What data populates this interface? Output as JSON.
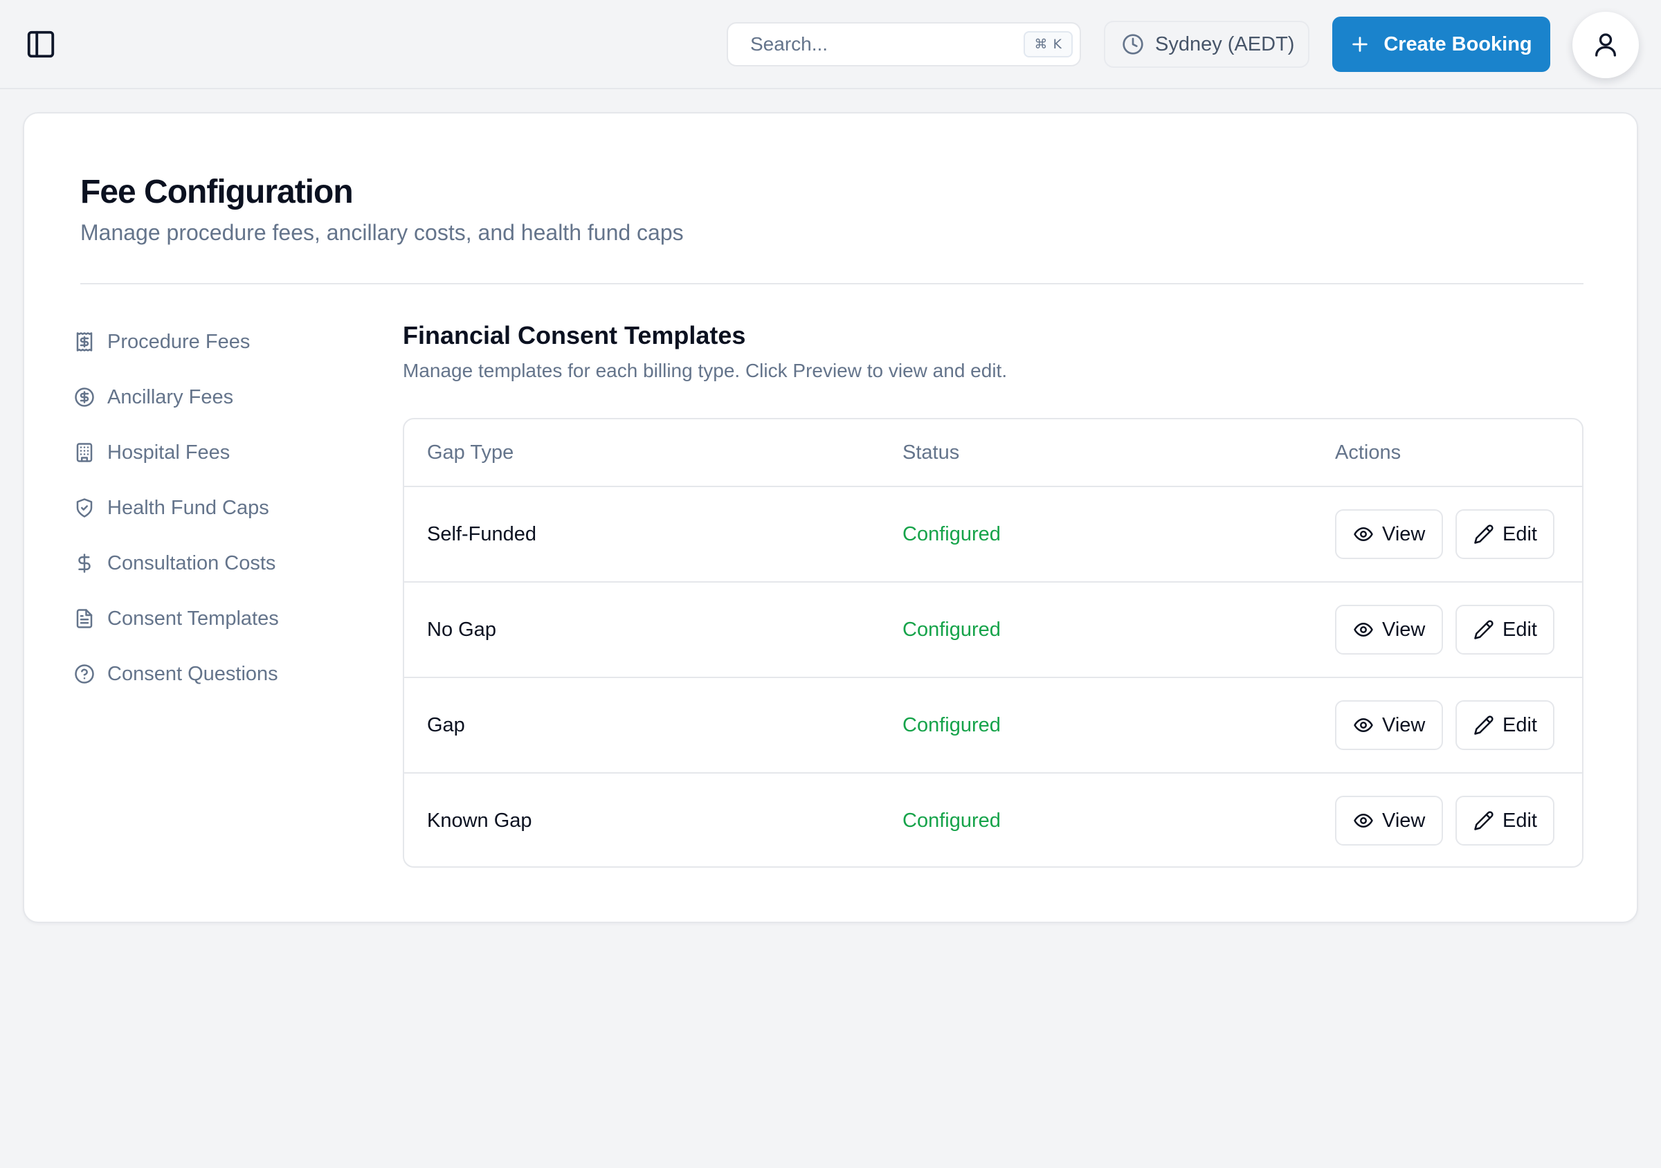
{
  "header": {
    "search": {
      "placeholder": "Search...",
      "shortcut_symbol": "⌘",
      "shortcut_key": "K"
    },
    "timezone_label": "Sydney (AEDT)",
    "create_booking_label": "Create Booking"
  },
  "page": {
    "title": "Fee Configuration",
    "subtitle": "Manage procedure fees, ancillary costs, and health fund caps"
  },
  "sidebar": {
    "items": [
      {
        "label": "Procedure Fees",
        "icon": "receipt-icon"
      },
      {
        "label": "Ancillary Fees",
        "icon": "dollar-circle-icon"
      },
      {
        "label": "Hospital Fees",
        "icon": "building-icon"
      },
      {
        "label": "Health Fund Caps",
        "icon": "shield-check-icon"
      },
      {
        "label": "Consultation Costs",
        "icon": "dollar-icon"
      },
      {
        "label": "Consent Templates",
        "icon": "file-text-icon"
      },
      {
        "label": "Consent Questions",
        "icon": "help-circle-icon"
      }
    ]
  },
  "section": {
    "title": "Financial Consent Templates",
    "subtitle": "Manage templates for each billing type. Click Preview to view and edit."
  },
  "table": {
    "columns": [
      "Gap Type",
      "Status",
      "Actions"
    ],
    "rows": [
      {
        "gap_type": "Self-Funded",
        "status": "Configured",
        "view_label": "View",
        "edit_label": "Edit"
      },
      {
        "gap_type": "No Gap",
        "status": "Configured",
        "view_label": "View",
        "edit_label": "Edit"
      },
      {
        "gap_type": "Gap",
        "status": "Configured",
        "view_label": "View",
        "edit_label": "Edit"
      },
      {
        "gap_type": "Known Gap",
        "status": "Configured",
        "view_label": "View",
        "edit_label": "Edit"
      }
    ]
  },
  "colors": {
    "accent": "#1a83cc",
    "status_ok": "#16a34a",
    "muted_text": "#64748b",
    "background": "#f3f4f6"
  }
}
